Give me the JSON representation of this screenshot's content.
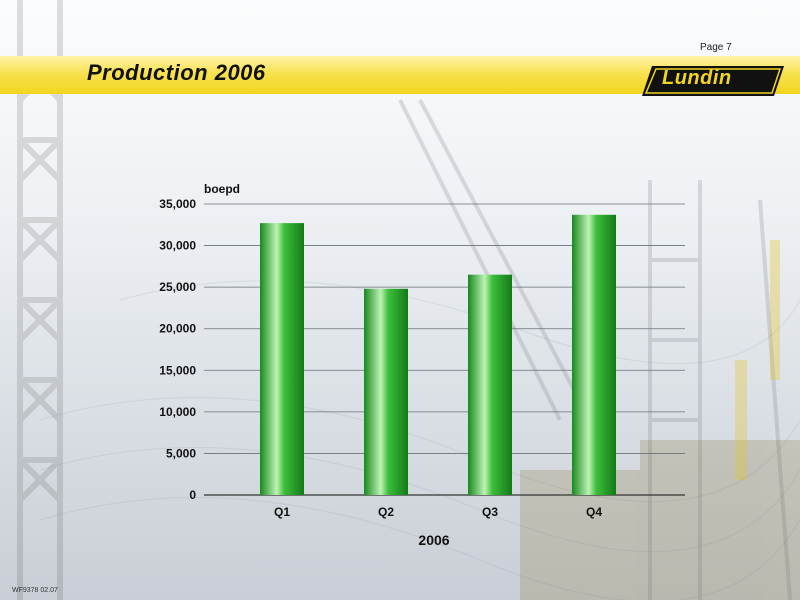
{
  "header": {
    "page_label": "Page 7",
    "title": "Production 2006",
    "logo_text": "Lundin"
  },
  "footer": {
    "code": "WF9378 02.07"
  },
  "colors": {
    "bar": "#22a82c",
    "bar_highlight": "#bff2b4",
    "title_band": "#f2d51f",
    "logo_bg": "#111111"
  },
  "chart_data": {
    "type": "bar",
    "categories": [
      "Q1",
      "Q2",
      "Q3",
      "Q4"
    ],
    "values": [
      32700,
      24800,
      26500,
      33700
    ],
    "ylabel": "boepd",
    "xlabel": "2006",
    "ylim": [
      0,
      35000
    ],
    "yticks": [
      0,
      5000,
      10000,
      15000,
      20000,
      25000,
      30000,
      35000
    ],
    "ytick_labels": [
      "0",
      "5,000",
      "10,000",
      "15,000",
      "20,000",
      "25,000",
      "30,000",
      "35,000"
    ],
    "grid": true
  }
}
